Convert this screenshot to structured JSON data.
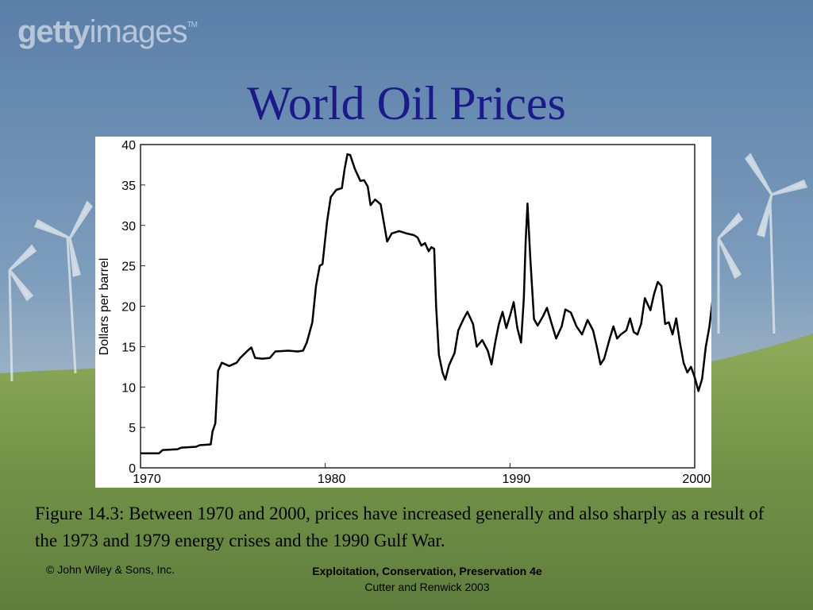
{
  "watermark": {
    "text_bold": "getty",
    "text_rest": "images",
    "tm": "TM"
  },
  "slide": {
    "title": "World Oil Prices",
    "caption": "Figure 14.3: Between 1970 and 2000, prices have increased generally and also sharply as a result of the 1973 and 1979 energy crises and the 1990 Gulf War.",
    "footer_left": "© John Wiley & Sons, Inc.",
    "footer_title": "Exploitation, Conservation, Preservation 4e",
    "footer_authors": "Cutter and Renwick 2003"
  },
  "colors": {
    "title": "#1a1a8a",
    "line": "#000000",
    "panel": "#ffffff"
  },
  "chart_data": {
    "type": "line",
    "title": "",
    "xlabel": "",
    "ylabel": "Dollars per barrel",
    "xlim": [
      1970,
      2000
    ],
    "ylim": [
      0,
      40
    ],
    "xticks": [
      1970,
      1980,
      1990,
      2000
    ],
    "yticks": [
      0,
      5,
      10,
      15,
      20,
      25,
      30,
      35,
      40
    ],
    "grid": false,
    "series": [
      {
        "values": [
          [
            1970,
            1.8
          ],
          [
            1971,
            1.8
          ],
          [
            1971.2,
            2.2
          ],
          [
            1972,
            2.3
          ],
          [
            1972.2,
            2.5
          ],
          [
            1973,
            2.6
          ],
          [
            1973.2,
            2.8
          ],
          [
            1973.8,
            2.9
          ],
          [
            1973.9,
            4.5
          ],
          [
            1974.05,
            5.5
          ],
          [
            1974.2,
            12
          ],
          [
            1974.4,
            13
          ],
          [
            1974.8,
            12.6
          ],
          [
            1975.2,
            13
          ],
          [
            1975.4,
            13.6
          ],
          [
            1975.8,
            14.5
          ],
          [
            1976.0,
            14.9
          ],
          [
            1976.2,
            13.6
          ],
          [
            1976.6,
            13.5
          ],
          [
            1977.0,
            13.6
          ],
          [
            1977.3,
            14.4
          ],
          [
            1978.0,
            14.5
          ],
          [
            1978.5,
            14.4
          ],
          [
            1978.8,
            14.5
          ],
          [
            1979.0,
            15.5
          ],
          [
            1979.3,
            18
          ],
          [
            1979.5,
            22.5
          ],
          [
            1979.7,
            25
          ],
          [
            1979.85,
            25.2
          ],
          [
            1980.1,
            30.5
          ],
          [
            1980.3,
            33.5
          ],
          [
            1980.6,
            34.4
          ],
          [
            1980.9,
            34.6
          ],
          [
            1981.05,
            37
          ],
          [
            1981.2,
            38.8
          ],
          [
            1981.35,
            38.7
          ],
          [
            1981.6,
            37
          ],
          [
            1981.9,
            35.5
          ],
          [
            1982.1,
            35.6
          ],
          [
            1982.3,
            34.8
          ],
          [
            1982.45,
            32.5
          ],
          [
            1982.7,
            33.2
          ],
          [
            1983.0,
            32.6
          ],
          [
            1983.2,
            30
          ],
          [
            1983.35,
            28
          ],
          [
            1983.6,
            29
          ],
          [
            1984.0,
            29.3
          ],
          [
            1984.4,
            29
          ],
          [
            1984.8,
            28.8
          ],
          [
            1985.0,
            28.5
          ],
          [
            1985.2,
            27.5
          ],
          [
            1985.4,
            27.8
          ],
          [
            1985.6,
            26.8
          ],
          [
            1985.75,
            27.3
          ],
          [
            1985.9,
            27.1
          ],
          [
            1986.0,
            20
          ],
          [
            1986.15,
            14
          ],
          [
            1986.35,
            11.8
          ],
          [
            1986.5,
            10.9
          ],
          [
            1986.7,
            12.7
          ],
          [
            1987.0,
            14.2
          ],
          [
            1987.2,
            17
          ],
          [
            1987.5,
            18.5
          ],
          [
            1987.7,
            19.3
          ],
          [
            1988.0,
            17.8
          ],
          [
            1988.2,
            15
          ],
          [
            1988.5,
            15.8
          ],
          [
            1988.8,
            14.5
          ],
          [
            1989.0,
            12.8
          ],
          [
            1989.2,
            15.5
          ],
          [
            1989.4,
            17.8
          ],
          [
            1989.6,
            19.3
          ],
          [
            1989.8,
            17.3
          ],
          [
            1990.0,
            18.8
          ],
          [
            1990.2,
            20.5
          ],
          [
            1990.4,
            17.3
          ],
          [
            1990.6,
            15.5
          ],
          [
            1990.75,
            21
          ],
          [
            1990.85,
            28
          ],
          [
            1990.95,
            32.7
          ],
          [
            1991.1,
            26
          ],
          [
            1991.3,
            18.4
          ],
          [
            1991.5,
            17.6
          ],
          [
            1991.8,
            18.8
          ],
          [
            1992.0,
            19.8
          ],
          [
            1992.3,
            17.5
          ],
          [
            1992.5,
            16
          ],
          [
            1992.8,
            17.5
          ],
          [
            1993.0,
            19.6
          ],
          [
            1993.3,
            19.2
          ],
          [
            1993.6,
            17.5
          ],
          [
            1993.9,
            16.5
          ],
          [
            1994.2,
            18.3
          ],
          [
            1994.5,
            17
          ],
          [
            1994.7,
            15
          ],
          [
            1994.9,
            12.8
          ],
          [
            1995.1,
            13.5
          ],
          [
            1995.4,
            16
          ],
          [
            1995.6,
            17.5
          ],
          [
            1995.8,
            16
          ],
          [
            1996.0,
            16.5
          ],
          [
            1996.3,
            17
          ],
          [
            1996.5,
            18.5
          ],
          [
            1996.7,
            16.8
          ],
          [
            1996.9,
            16.5
          ],
          [
            1997.1,
            17.8
          ],
          [
            1997.3,
            21
          ],
          [
            1997.6,
            19.5
          ],
          [
            1997.8,
            21.5
          ],
          [
            1998.0,
            23
          ],
          [
            1998.2,
            22.5
          ],
          [
            1998.4,
            17.8
          ],
          [
            1998.6,
            18
          ],
          [
            1998.8,
            16.5
          ],
          [
            1999.0,
            18.5
          ],
          [
            1999.2,
            15.5
          ],
          [
            1999.4,
            13
          ],
          [
            1999.6,
            11.8
          ],
          [
            1999.8,
            12.5
          ],
          [
            2000.0,
            11.2
          ],
          [
            2000.2,
            9.5
          ],
          [
            2000.4,
            11
          ],
          [
            2000.6,
            15
          ],
          [
            2000.8,
            17.5
          ],
          [
            2001.0,
            21.5
          ],
          [
            2001.2,
            24.3
          ]
        ]
      }
    ]
  }
}
